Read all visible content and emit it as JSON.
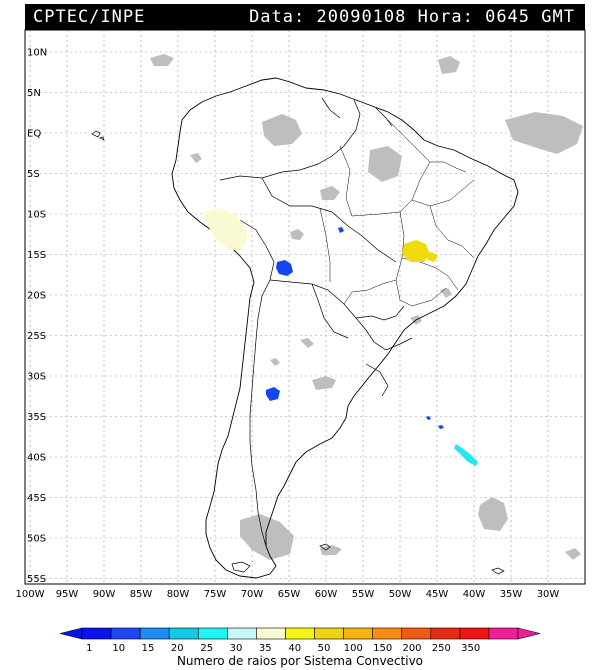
{
  "header": {
    "source": "CPTEC/INPE",
    "date_label": "Data:",
    "date": "20090108",
    "time_label": "Hora:",
    "time": "0645",
    "tz": "GMT"
  },
  "axes": {
    "lat_labels": [
      "10N",
      "5N",
      "EQ",
      "5S",
      "10S",
      "15S",
      "20S",
      "25S",
      "30S",
      "35S",
      "40S",
      "45S",
      "50S",
      "55S"
    ],
    "lon_labels": [
      "100W",
      "95W",
      "90W",
      "85W",
      "80W",
      "75W",
      "70W",
      "65W",
      "60W",
      "55W",
      "50W",
      "45W",
      "40W",
      "35W",
      "30W"
    ]
  },
  "colorbar": {
    "title": "Numero de raios por Sistema Convectivo",
    "ticks": [
      "1",
      "10",
      "15",
      "20",
      "25",
      "30",
      "35",
      "40",
      "50",
      "100",
      "150",
      "200",
      "250",
      "350"
    ],
    "colors": [
      "#0a14f0",
      "#1e46f5",
      "#1e8cf0",
      "#14c8e6",
      "#1ef5f5",
      "#c8f5f5",
      "#fafad2",
      "#f5f514",
      "#f0d214",
      "#f5b414",
      "#f58c14",
      "#f05a14",
      "#e62d14",
      "#f01414",
      "#f01e96"
    ]
  },
  "legend_colors": {
    "cloud": "#bebebe",
    "cell_blue": "#1446f0",
    "cell_yellow": "#f0dc0a",
    "cell_pale": "#fafad2",
    "cell_cyan": "#28e6f0"
  }
}
